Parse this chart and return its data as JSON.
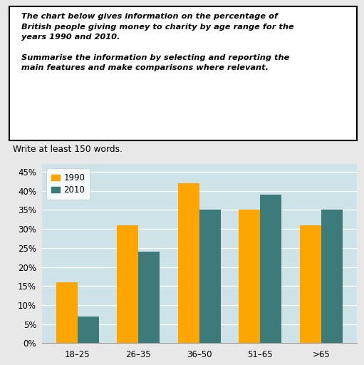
{
  "categories": [
    "18–25",
    "26–35",
    "36–50",
    "51–65",
    ">65"
  ],
  "values_1990": [
    16,
    31,
    42,
    35,
    31
  ],
  "values_2010": [
    7,
    24,
    35,
    39,
    35
  ],
  "color_1990": "#FFA500",
  "color_2010": "#3D7A7A",
  "legend_labels": [
    "1990",
    "2010"
  ],
  "yticks": [
    0,
    5,
    10,
    15,
    20,
    25,
    30,
    35,
    40,
    45
  ],
  "ylim": [
    0,
    47
  ],
  "bar_width": 0.35,
  "chart_bg": "#CDE3E8",
  "fig_bg": "#E8E8E8",
  "subtitle": "Write at least 150 words.",
  "bold_italic_text": "The chart below gives information on the percentage of\nBritish people giving money to charity by age range for the\nyears 1990 and 2010.\n\nSummarise the information by selecting and reporting the\nmain features and make comparisons where relevant."
}
